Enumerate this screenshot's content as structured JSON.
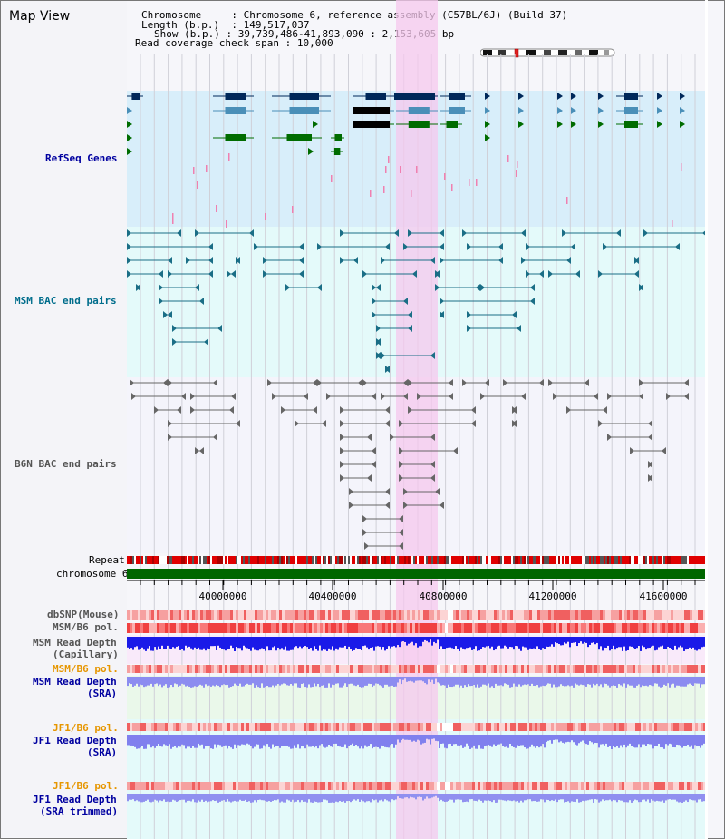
{
  "header": {
    "title": "Map View",
    "chromosome_label": "Chromosome",
    "chromosome_value": "Chromosome 6, reference assembly (C57BL/6J) (Build 37)",
    "length_label": "Length (b.p.)",
    "length_value": "149,517,037",
    "show_label": "Show (b.p.)",
    "show_value": "39,739,486-41,893,090 : 2,153,605 bp",
    "coverage_label": "Read coverage check span",
    "coverage_value": "10,000",
    "sep": ":"
  },
  "tracks": {
    "refseq": "RefSeq Genes",
    "msm_bac": "MSM BAC end pairs",
    "b6n_bac": "B6N BAC end pairs",
    "repeat": "Repeat",
    "chromosome": "chromosome 6",
    "dbsnp": "dbSNP(Mouse)",
    "msm_b6_pol": "MSM/B6 pol.",
    "msm_depth_cap_1": "MSM Read Depth",
    "msm_depth_cap_2": "(Capillary)",
    "msm_b6_pol_2": "MSM/B6 pol.",
    "msm_depth_sra_1": "MSM Read Depth",
    "msm_depth_sra_2": "(SRA)",
    "jf1_pol": "JF1/B6 pol.",
    "jf1_depth_1": "JF1 Read Depth",
    "jf1_depth_2": "(SRA)",
    "jf1_pol_2": "JF1/B6 pol.",
    "jf1_trim_1": "JF1 Read Depth",
    "jf1_trim_2": "(SRA trimmed)"
  },
  "axis": {
    "ticks": [
      "40000000",
      "40400000",
      "40800000",
      "41200000",
      "41600000"
    ]
  },
  "colors": {
    "refseq_dark": "#00285a",
    "refseq_mid": "#4a8fb8",
    "refseq_green": "#006c00",
    "msm_teal": "#1a6e86",
    "b6n_gray": "#666666",
    "highlight": "#f5c8ee",
    "chromosome_green": "#006600",
    "label_blue": "#0000a0",
    "label_teal": "#006d8c",
    "label_orange": "#e69600"
  }
}
